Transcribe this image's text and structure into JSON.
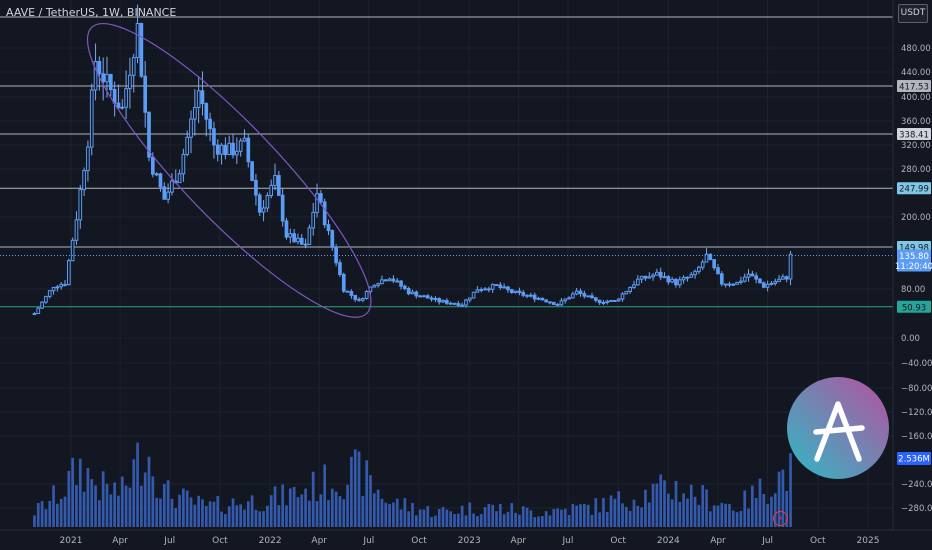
{
  "header": {
    "symbol_label": "AAVE / TetherUS, 1W, BINANCE",
    "currency_label": "USDT"
  },
  "colors": {
    "background": "#131722",
    "candle_body": "#5b9cf6",
    "candle_wick": "#7aa8ee",
    "volume": "#3a66c4",
    "level_line": "#b2b5be",
    "ellipse": "#7e57c2",
    "support_line": "#2aa37d",
    "logo_gradient_start": "#2ebac6",
    "logo_gradient_end": "#b6509e"
  },
  "icons": {
    "logo": "aave-logo-icon",
    "bolt": "lightning-icon"
  },
  "chart_data": {
    "type": "candlestick",
    "timeframe": "1W",
    "yaxis_ticks": [
      480,
      440,
      400,
      360,
      320,
      280,
      200,
      80,
      0,
      -40,
      -80,
      -120,
      -160,
      -240,
      -280
    ],
    "yaxis_tick_labels": [
      "480.00",
      "440.00",
      "400.00",
      "360.00",
      "320.00",
      "280.00",
      "200.00",
      "80.00",
      "0.00",
      "−40.00",
      "−80.00",
      "−120.00",
      "−160.00",
      "−240.00",
      "−280.00"
    ],
    "xaxis_ticks": [
      {
        "label": "2021",
        "date": "2021-01-01"
      },
      {
        "label": "Apr",
        "date": "2021-04-01"
      },
      {
        "label": "Jul",
        "date": "2021-07-01"
      },
      {
        "label": "Oct",
        "date": "2021-10-01"
      },
      {
        "label": "2022",
        "date": "2022-01-01"
      },
      {
        "label": "Apr",
        "date": "2022-04-01"
      },
      {
        "label": "Jul",
        "date": "2022-07-01"
      },
      {
        "label": "Oct",
        "date": "2022-10-01"
      },
      {
        "label": "2023",
        "date": "2023-01-01"
      },
      {
        "label": "Apr",
        "date": "2023-04-01"
      },
      {
        "label": "Jul",
        "date": "2023-07-01"
      },
      {
        "label": "Oct",
        "date": "2023-10-01"
      },
      {
        "label": "2024",
        "date": "2024-01-01"
      },
      {
        "label": "Apr",
        "date": "2024-04-01"
      },
      {
        "label": "Jul",
        "date": "2024-07-01"
      },
      {
        "label": "Oct",
        "date": "2024-10-01"
      },
      {
        "label": "2025",
        "date": "2025-01-01"
      }
    ],
    "horizontal_levels": [
      {
        "value": 417.53,
        "label": "417.53",
        "color": "#b2b5be",
        "text_color": "#131722"
      },
      {
        "value": 338.41,
        "label": "338.41",
        "color": "#d1d4dc",
        "text_color": "#131722"
      },
      {
        "value": 247.99,
        "label": "247.99",
        "color": "#7ec8e3",
        "text_color": "#131722"
      },
      {
        "value": 149.98,
        "label": "149.98",
        "color": "#7ec8e3",
        "text_color": "#131722"
      },
      {
        "value": 50.93,
        "label": "50.93",
        "color": "#26a69a",
        "text_color": "#131722"
      }
    ],
    "top_level": 540,
    "last_price": {
      "value": 135.8,
      "label": "135.80",
      "countdown": "11:20:40",
      "color": "#5b9cf6"
    },
    "volume_label": {
      "label": "2.536M",
      "color": "#2962ff"
    },
    "candle_anchors": [
      [
        "2020-10-26",
        40
      ],
      [
        "2020-11-30",
        85
      ],
      [
        "2020-12-21",
        90
      ],
      [
        "2021-01-11",
        200
      ],
      [
        "2021-02-01",
        330
      ],
      [
        "2021-02-15",
        460
      ],
      [
        "2021-03-08",
        420
      ],
      [
        "2021-04-05",
        380
      ],
      [
        "2021-05-03",
        520
      ],
      [
        "2021-05-24",
        300
      ],
      [
        "2021-06-21",
        230
      ],
      [
        "2021-07-19",
        280
      ],
      [
        "2021-08-23",
        410
      ],
      [
        "2021-09-20",
        320
      ],
      [
        "2021-10-18",
        310
      ],
      [
        "2021-11-15",
        320
      ],
      [
        "2021-12-13",
        210
      ],
      [
        "2022-01-10",
        260
      ],
      [
        "2022-01-31",
        170
      ],
      [
        "2022-03-07",
        150
      ],
      [
        "2022-03-28",
        240
      ],
      [
        "2022-04-25",
        150
      ],
      [
        "2022-05-16",
        80
      ],
      [
        "2022-06-13",
        60
      ],
      [
        "2022-07-11",
        90
      ],
      [
        "2022-08-08",
        100
      ],
      [
        "2022-09-12",
        75
      ],
      [
        "2022-11-07",
        60
      ],
      [
        "2022-12-19",
        55
      ],
      [
        "2023-01-16",
        80
      ],
      [
        "2023-02-20",
        85
      ],
      [
        "2023-03-20",
        75
      ],
      [
        "2023-05-08",
        65
      ],
      [
        "2023-06-12",
        55
      ],
      [
        "2023-07-17",
        75
      ],
      [
        "2023-08-21",
        60
      ],
      [
        "2023-09-25",
        60
      ],
      [
        "2023-11-06",
        95
      ],
      [
        "2023-12-11",
        105
      ],
      [
        "2024-01-15",
        90
      ],
      [
        "2024-02-19",
        105
      ],
      [
        "2024-03-11",
        135
      ],
      [
        "2024-04-08",
        90
      ],
      [
        "2024-05-06",
        90
      ],
      [
        "2024-05-27",
        105
      ],
      [
        "2024-06-24",
        85
      ],
      [
        "2024-07-22",
        95
      ],
      [
        "2024-08-05",
        100
      ],
      [
        "2024-08-12",
        135
      ]
    ],
    "volume_profile": [
      [
        "2020-10-26",
        15
      ],
      [
        "2020-12-14",
        35
      ],
      [
        "2021-01-18",
        60
      ],
      [
        "2021-02-22",
        40
      ],
      [
        "2021-04-05",
        35
      ],
      [
        "2021-05-17",
        80
      ],
      [
        "2021-06-21",
        35
      ],
      [
        "2021-09-06",
        20
      ],
      [
        "2021-11-15",
        25
      ],
      [
        "2022-01-24",
        30
      ],
      [
        "2022-04-18",
        45
      ],
      [
        "2022-06-13",
        55
      ],
      [
        "2022-08-08",
        25
      ],
      [
        "2022-10-31",
        15
      ],
      [
        "2023-01-30",
        20
      ],
      [
        "2023-05-01",
        15
      ],
      [
        "2023-08-14",
        20
      ],
      [
        "2023-10-30",
        30
      ],
      [
        "2024-01-08",
        40
      ],
      [
        "2024-03-04",
        30
      ],
      [
        "2024-05-06",
        20
      ],
      [
        "2024-08-05",
        55
      ]
    ],
    "volume_max_label_value": "2.536M",
    "annotation": {
      "type": "ellipse",
      "color": "#7e57c2",
      "from": [
        "2021-02-08",
        520
      ],
      "to": [
        "2022-06-27",
        40
      ]
    }
  }
}
